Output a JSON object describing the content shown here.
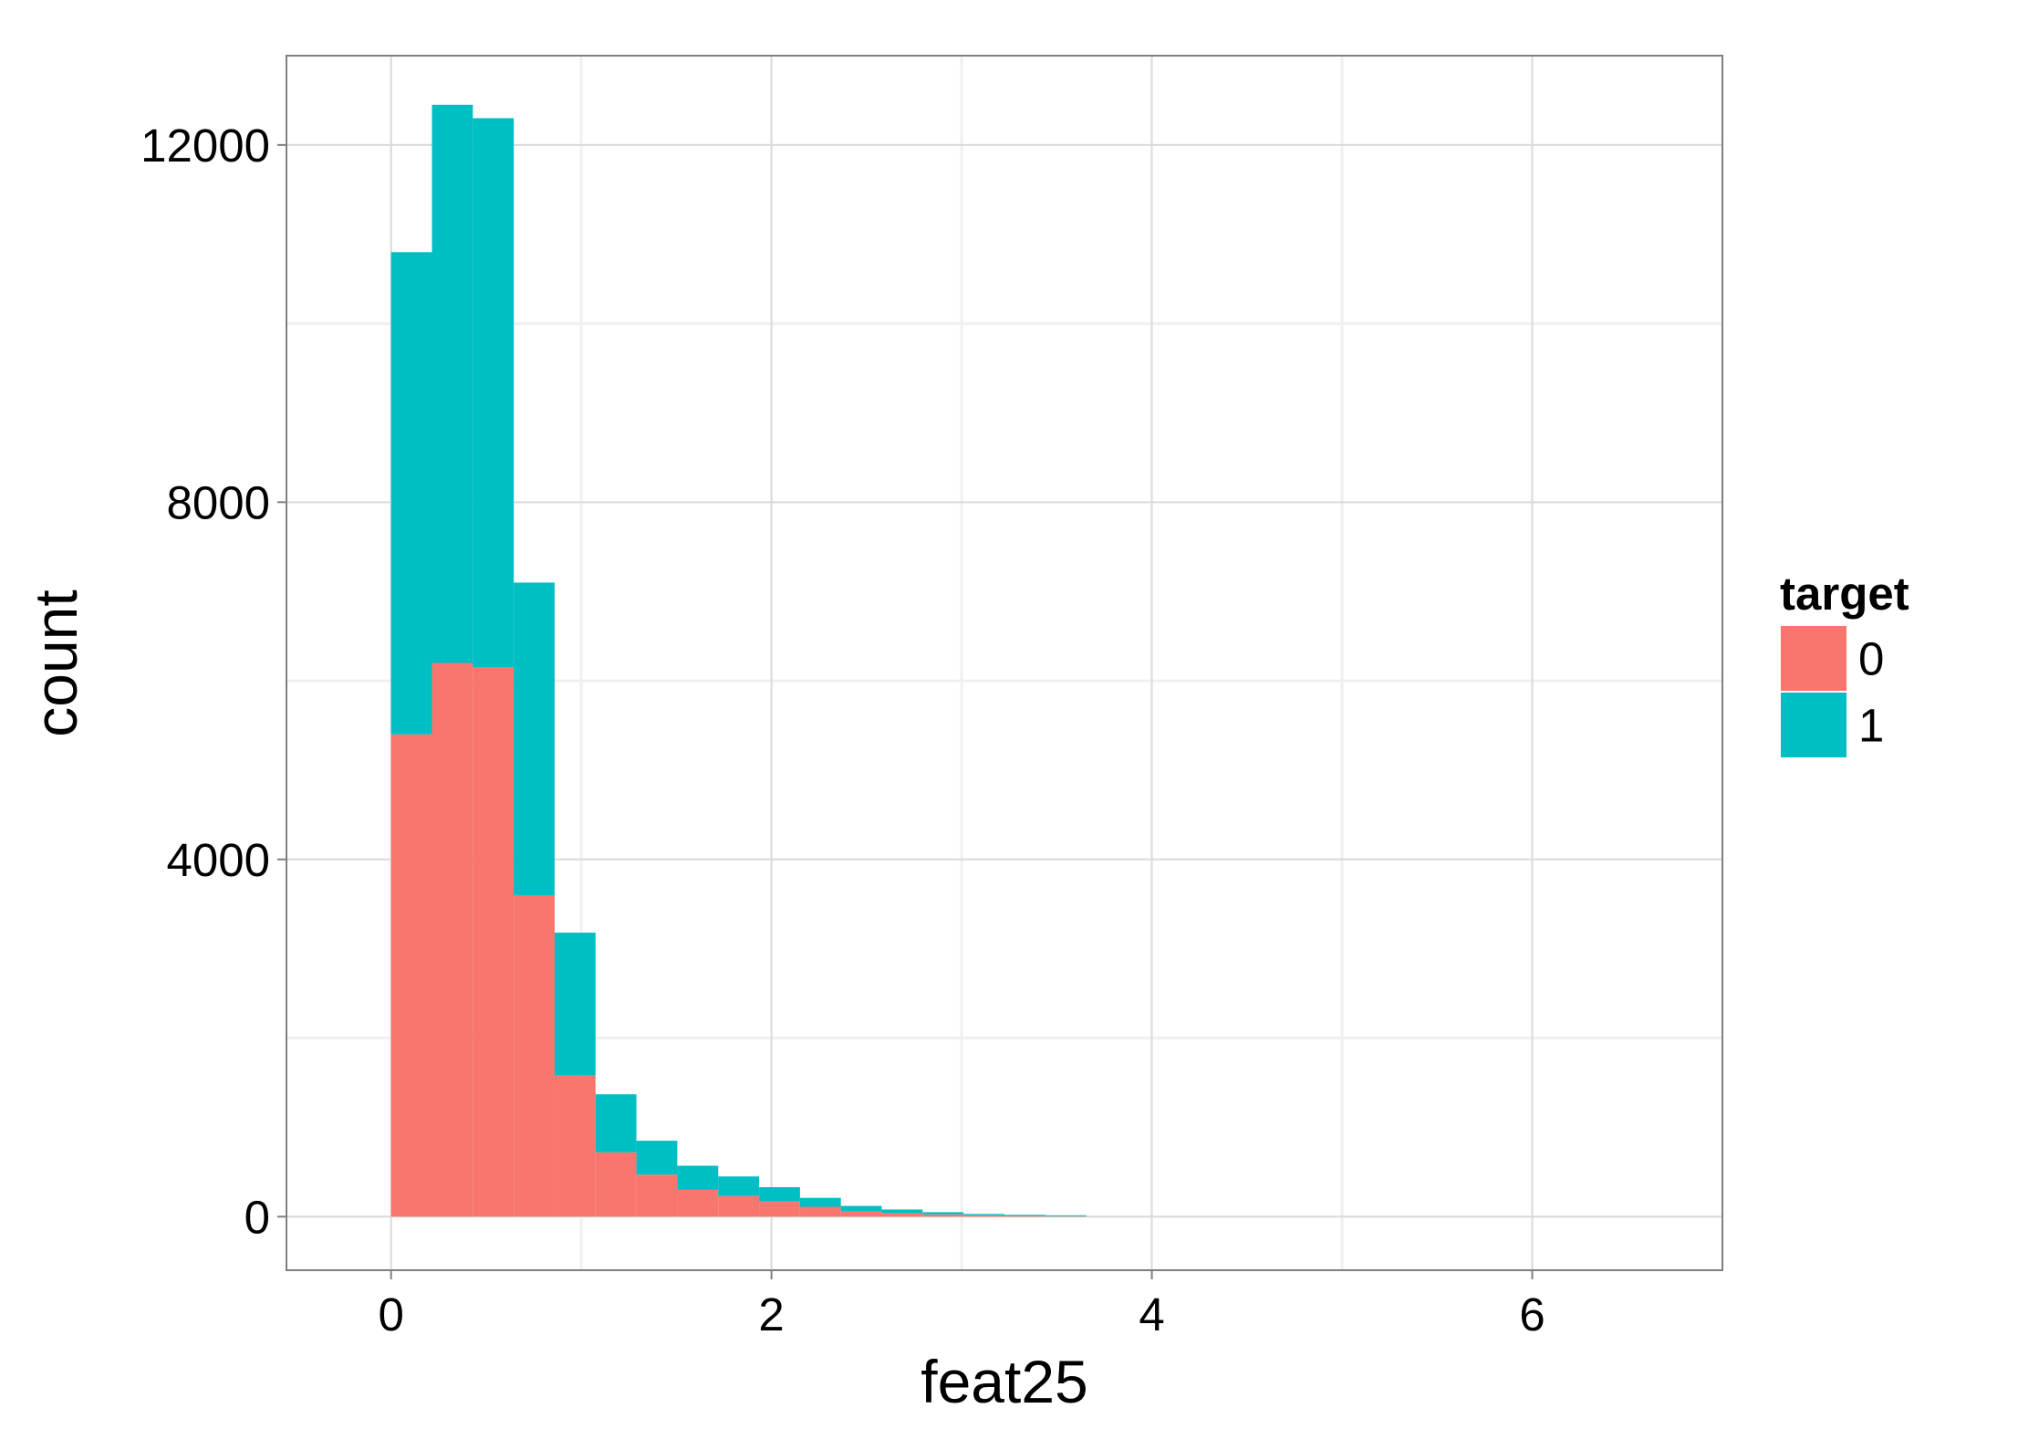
{
  "chart_data": {
    "type": "bar",
    "subtype": "stacked-histogram",
    "title": "",
    "xlabel": "feat25",
    "ylabel": "count",
    "xlim": [
      -0.55,
      7.0
    ],
    "ylim": [
      -600,
      13000
    ],
    "x_ticks": [
      0,
      2,
      4,
      6
    ],
    "x_minor_ticks": [
      1,
      3,
      5
    ],
    "y_ticks": [
      0,
      4000,
      8000,
      12000
    ],
    "y_minor_ticks": [
      2000,
      6000,
      10000
    ],
    "x_tick_labels": [
      "0",
      "2",
      "4",
      "6"
    ],
    "y_tick_labels": [
      "0",
      "4000",
      "8000",
      "12000"
    ],
    "grid": true,
    "legend": {
      "title": "target",
      "position": "right"
    },
    "bins": [
      {
        "x0": 0.0,
        "x1": 0.215
      },
      {
        "x0": 0.215,
        "x1": 0.43
      },
      {
        "x0": 0.43,
        "x1": 0.645
      },
      {
        "x0": 0.645,
        "x1": 0.86
      },
      {
        "x0": 0.86,
        "x1": 1.075
      },
      {
        "x0": 1.075,
        "x1": 1.29
      },
      {
        "x0": 1.29,
        "x1": 1.505
      },
      {
        "x0": 1.505,
        "x1": 1.72
      },
      {
        "x0": 1.72,
        "x1": 1.935
      },
      {
        "x0": 1.935,
        "x1": 2.15
      },
      {
        "x0": 2.15,
        "x1": 2.365
      },
      {
        "x0": 2.365,
        "x1": 2.58
      },
      {
        "x0": 2.58,
        "x1": 2.795
      },
      {
        "x0": 2.795,
        "x1": 3.01
      },
      {
        "x0": 3.01,
        "x1": 3.225
      },
      {
        "x0": 3.225,
        "x1": 3.44
      },
      {
        "x0": 3.44,
        "x1": 3.655
      }
    ],
    "series": [
      {
        "name": "0",
        "color": "#F8766D",
        "values": [
          5400,
          6200,
          6150,
          3600,
          1580,
          720,
          470,
          300,
          230,
          170,
          110,
          60,
          40,
          25,
          15,
          8,
          5
        ]
      },
      {
        "name": "1",
        "color": "#00BFC4",
        "values": [
          5400,
          6250,
          6150,
          3500,
          1600,
          650,
          380,
          270,
          220,
          160,
          100,
          60,
          40,
          25,
          15,
          12,
          10
        ]
      }
    ],
    "panel": {
      "background": "#ffffff",
      "border_color": "#7f7f7f",
      "grid_major_color": "#d9d9d9",
      "grid_minor_color": "#f0f0f0"
    }
  }
}
